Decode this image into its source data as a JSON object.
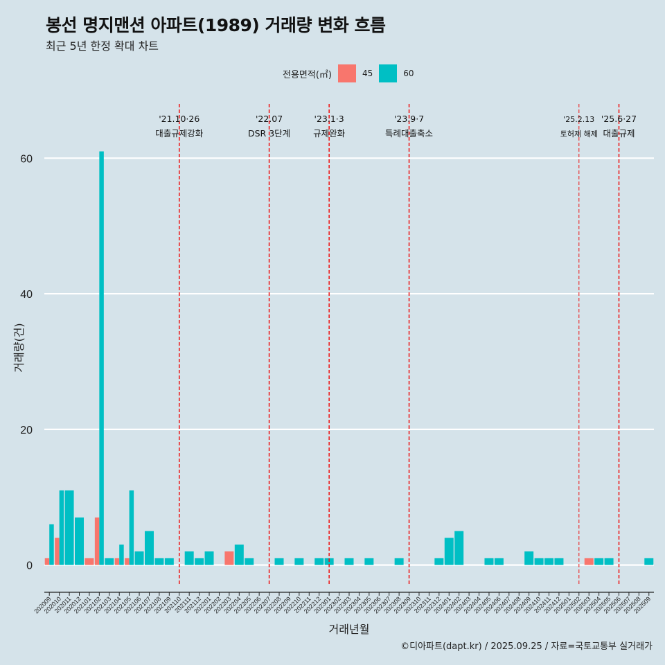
{
  "title": "봉선 명지맨션 아파트(1989) 거래량 변화 흐름",
  "subtitle": "최근 5년 한정 확대 차트",
  "legend": {
    "title": "전용면적(㎡)",
    "items": [
      {
        "label": "45",
        "color": "#f8766d"
      },
      {
        "label": "60",
        "color": "#00bfc4"
      }
    ]
  },
  "caption": "©디아파트(dapt.kr) / 2025.09.25 / 자료=국토교통부 실거래가",
  "chart_data": {
    "type": "bar",
    "title": "봉선 명지맨션 아파트(1989) 거래량 변화 흐름",
    "xlabel": "거래년월",
    "ylabel": "거래량(건)",
    "ylim": [
      -3,
      68
    ],
    "yticks": [
      0,
      20,
      40,
      60
    ],
    "categories": [
      "202009",
      "202010",
      "202011",
      "202012",
      "202101",
      "202102",
      "202103",
      "202104",
      "202105",
      "202106",
      "202107",
      "202108",
      "202109",
      "202110",
      "202111",
      "202112",
      "202201",
      "202202",
      "202203",
      "202204",
      "202205",
      "202206",
      "202207",
      "202208",
      "202209",
      "202210",
      "202211",
      "202212",
      "202301",
      "202302",
      "202303",
      "202304",
      "202305",
      "202306",
      "202307",
      "202308",
      "202309",
      "202310",
      "202311",
      "202312",
      "202401",
      "202402",
      "202403",
      "202404",
      "202405",
      "202406",
      "202407",
      "202408",
      "202409",
      "202410",
      "202411",
      "202412",
      "202501",
      "202502",
      "202503",
      "202504",
      "202505",
      "202506",
      "202507",
      "202508",
      "202509"
    ],
    "series": [
      {
        "name": "45",
        "color": "#f8766d",
        "values": [
          1,
          4,
          0,
          0,
          1,
          7,
          0,
          1,
          1,
          0,
          0,
          0,
          0,
          0,
          0,
          0,
          0,
          0,
          2,
          0,
          0,
          0,
          0,
          0,
          0,
          0,
          0,
          0,
          0,
          0,
          0,
          0,
          0,
          0,
          0,
          0,
          0,
          0,
          0,
          0,
          0,
          0,
          0,
          0,
          0,
          0,
          0,
          0,
          0,
          0,
          0,
          0,
          0,
          0,
          1,
          0,
          0,
          0,
          0,
          0,
          0
        ]
      },
      {
        "name": "60",
        "color": "#00bfc4",
        "values": [
          6,
          11,
          11,
          7,
          0,
          61,
          1,
          3,
          11,
          2,
          5,
          1,
          1,
          0,
          2,
          1,
          2,
          0,
          0,
          3,
          1,
          0,
          0,
          1,
          0,
          1,
          0,
          1,
          1,
          0,
          1,
          0,
          1,
          0,
          0,
          1,
          0,
          0,
          0,
          1,
          4,
          5,
          0,
          0,
          1,
          1,
          0,
          0,
          2,
          1,
          1,
          1,
          0,
          0,
          0,
          1,
          1,
          0,
          0,
          0,
          1
        ]
      }
    ],
    "events": [
      {
        "category": "202110",
        "label_top": "'21.10·26",
        "label_bottom": "대출규제강화",
        "small": false
      },
      {
        "category": "202207",
        "label_top": "'22.07",
        "label_bottom": "DSR 3단계",
        "small": false
      },
      {
        "category": "202301",
        "label_top": "'23.1·3",
        "label_bottom": "규제완화",
        "small": false
      },
      {
        "category": "202309",
        "label_top": "'23.9·7",
        "label_bottom": "특례대출축소",
        "small": false
      },
      {
        "category": "202502",
        "label_top": "'25.2.13",
        "label_bottom": "토허제 해제",
        "small": true
      },
      {
        "category": "202506",
        "label_top": "'25.6·27",
        "label_bottom": "대출규제",
        "small": false
      }
    ]
  }
}
